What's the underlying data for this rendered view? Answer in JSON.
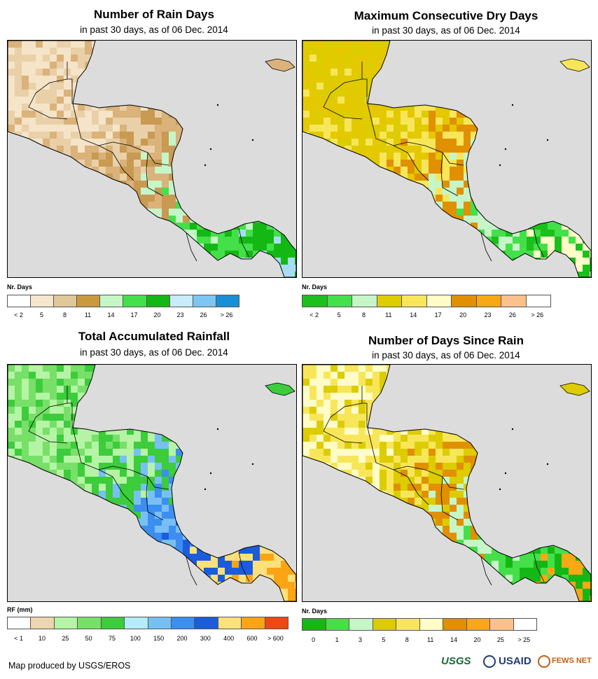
{
  "panels": [
    {
      "id": "rain-days",
      "title": "Number of Rain Days",
      "subtitle": "in past 30 days, as of 06 Dec. 2014",
      "legend_label": "Nr. Days",
      "legend_colors": [
        "#ffffff",
        "#f6e6cc",
        "#e0c79a",
        "#c99a3c",
        "#c6f5c8",
        "#44e04a",
        "#14b814",
        "#c8ecfc",
        "#7cc6f2",
        "#1890d8"
      ],
      "ticks": [
        "< 2",
        "5",
        "8",
        "11",
        "14",
        "17",
        "20",
        "23",
        "26",
        "> 26"
      ],
      "scheme": [
        "#f5e4c8",
        "#e9d0a8",
        "#dab27a",
        "#c89a52",
        "#c6f5c8",
        "#44e04a",
        "#14b814",
        "#a8dcf4"
      ]
    },
    {
      "id": "max-dry-days",
      "title": "Maximum Consecutive Dry Days",
      "subtitle": "in past 30 days, as of 06 Dec. 2014",
      "legend_label": "Nr. Days",
      "legend_colors": [
        "#1cc01c",
        "#44e04a",
        "#c6f5c8",
        "#dccc00",
        "#f8e65a",
        "#fffcc8",
        "#e09000",
        "#f8a814",
        "#fcc08a",
        "#ffffff"
      ],
      "ticks": [
        "< 2",
        "5",
        "8",
        "11",
        "14",
        "17",
        "20",
        "23",
        "26",
        "> 26"
      ],
      "scheme": [
        "#dccc00",
        "#e4c800",
        "#f8e65a",
        "#e09000",
        "#c6f5c8",
        "#44e04a",
        "#1cc01c",
        "#fffcc8"
      ]
    },
    {
      "id": "total-rainfall",
      "title": "Total Accumulated Rainfall",
      "subtitle": "in past 30 days, as of 06 Dec. 2014",
      "legend_label": "RF (mm)",
      "legend_colors": [
        "#ffffff",
        "#ecd6b0",
        "#b4f4a4",
        "#78e068",
        "#3ccc3c",
        "#b4ecfc",
        "#78c0f4",
        "#3c8ef0",
        "#1c5cdc",
        "#fce07c",
        "#fca414",
        "#f04814"
      ],
      "ticks": [
        "< 1",
        "10",
        "25",
        "50",
        "75",
        "100",
        "150",
        "200",
        "300",
        "400",
        "600",
        "> 600"
      ],
      "scheme": [
        "#78e068",
        "#b4f4a4",
        "#3ccc3c",
        "#78c0f4",
        "#3c8ef0",
        "#1c5cdc",
        "#fce07c",
        "#fca414"
      ]
    },
    {
      "id": "days-since-rain",
      "title": "Number of Days Since Rain",
      "subtitle": "in past 30 days, as of 06 Dec. 2014",
      "legend_label": "Nr. Days",
      "legend_colors": [
        "#14b814",
        "#44e04a",
        "#c6f5c8",
        "#dccc00",
        "#f8e65a",
        "#fffcc8",
        "#e09000",
        "#f8a814",
        "#fcc08a",
        "#ffffff"
      ],
      "ticks": [
        "0",
        "1",
        "3",
        "5",
        "8",
        "11",
        "14",
        "20",
        "25",
        "> 25"
      ],
      "scheme": [
        "#fffcc8",
        "#f8e65a",
        "#dccc00",
        "#e09000",
        "#c6f5c8",
        "#44e04a",
        "#14b814",
        "#f8a814"
      ]
    }
  ],
  "footer": {
    "credit": "Map produced by USGS/EROS",
    "logos": [
      "USGS",
      "USAID",
      "FEWS NET"
    ]
  }
}
